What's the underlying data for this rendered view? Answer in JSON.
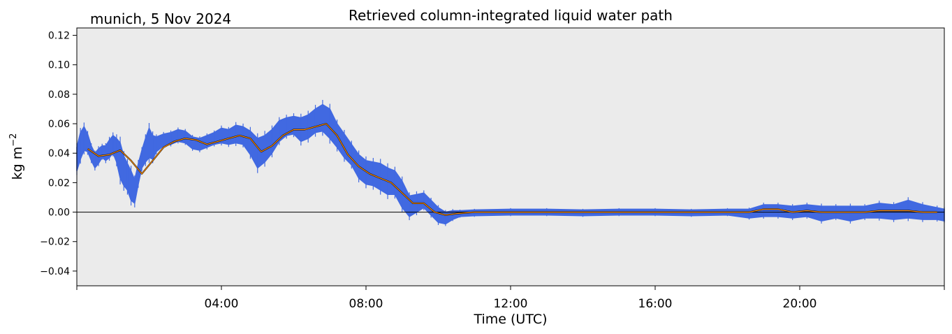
{
  "chart_data": {
    "type": "scatter",
    "title": "Retrieved column-integrated liquid water path",
    "subtitle": "munich, 5 Nov 2024",
    "xlabel": "Time (UTC)",
    "ylabel_base": "kg m",
    "ylabel_exp": "−2",
    "xlim_hours": [
      0,
      24
    ],
    "ylim": [
      -0.05,
      0.125
    ],
    "x_ticks": [
      {
        "hour": 0,
        "label": ""
      },
      {
        "hour": 4,
        "label": "04:00"
      },
      {
        "hour": 8,
        "label": "08:00"
      },
      {
        "hour": 12,
        "label": "12:00"
      },
      {
        "hour": 16,
        "label": "16:00"
      },
      {
        "hour": 20,
        "label": "20:00"
      },
      {
        "hour": 24,
        "label": ""
      }
    ],
    "y_ticks": [
      {
        "value": 0.12,
        "label": "0.12"
      },
      {
        "value": 0.1,
        "label": "0.10"
      },
      {
        "value": 0.08,
        "label": "0.08"
      },
      {
        "value": 0.06,
        "label": "0.06"
      },
      {
        "value": 0.04,
        "label": "0.04"
      },
      {
        "value": 0.02,
        "label": "0.02"
      },
      {
        "value": 0.0,
        "label": "0.00"
      },
      {
        "value": -0.02,
        "label": "−0.02"
      },
      {
        "value": -0.04,
        "label": "−0.04"
      }
    ],
    "zero_line": 0,
    "grid": false,
    "background": "#ebebeb",
    "series": [
      {
        "kind": "raw",
        "color": "#4169e1",
        "x_hours": [
          0.0,
          0.1,
          0.2,
          0.3,
          0.4,
          0.5,
          0.6,
          0.7,
          0.8,
          0.9,
          1.0,
          1.1,
          1.2,
          1.3,
          1.4,
          1.5,
          1.6,
          1.7,
          1.8,
          1.9,
          2.0,
          2.1,
          2.2,
          2.4,
          2.6,
          2.8,
          3.0,
          3.2,
          3.4,
          3.6,
          3.8,
          4.0,
          4.2,
          4.4,
          4.6,
          4.8,
          5.0,
          5.2,
          5.4,
          5.6,
          5.8,
          6.0,
          6.2,
          6.4,
          6.6,
          6.8,
          7.0,
          7.2,
          7.4,
          7.6,
          7.8,
          8.0,
          8.2,
          8.4,
          8.6,
          8.8,
          9.0,
          9.2,
          9.4,
          9.6,
          9.8,
          10.0,
          10.2,
          10.4,
          10.6,
          11.0,
          12.0,
          13.0,
          14.0,
          15.0,
          16.0,
          17.0,
          18.0,
          18.6,
          19.0,
          19.4,
          19.8,
          20.2,
          20.6,
          21.0,
          21.4,
          21.8,
          22.2,
          22.6,
          23.0,
          23.4,
          23.8,
          24.0
        ],
        "y": [
          0.036,
          0.045,
          0.05,
          0.047,
          0.04,
          0.035,
          0.038,
          0.041,
          0.04,
          0.043,
          0.046,
          0.042,
          0.035,
          0.028,
          0.024,
          0.018,
          0.014,
          0.026,
          0.036,
          0.042,
          0.047,
          0.044,
          0.046,
          0.049,
          0.05,
          0.052,
          0.051,
          0.047,
          0.046,
          0.048,
          0.05,
          0.052,
          0.051,
          0.053,
          0.052,
          0.047,
          0.04,
          0.043,
          0.048,
          0.055,
          0.058,
          0.059,
          0.056,
          0.058,
          0.062,
          0.064,
          0.06,
          0.052,
          0.045,
          0.039,
          0.031,
          0.027,
          0.026,
          0.024,
          0.021,
          0.02,
          0.012,
          0.004,
          0.006,
          0.008,
          0.003,
          -0.002,
          -0.004,
          -0.002,
          -0.001,
          -0.0005,
          0.0,
          0.0,
          -0.0005,
          0.0,
          0.0,
          -0.0005,
          0.0,
          -0.001,
          0.001,
          0.001,
          0.0,
          0.001,
          -0.001,
          0.0,
          -0.001,
          0.0,
          0.001,
          0.0,
          0.002,
          0.0,
          -0.001,
          -0.002
        ],
        "spread": [
          0.008,
          0.009,
          0.008,
          0.006,
          0.005,
          0.005,
          0.005,
          0.004,
          0.005,
          0.006,
          0.006,
          0.008,
          0.012,
          0.01,
          0.009,
          0.01,
          0.008,
          0.007,
          0.006,
          0.008,
          0.01,
          0.008,
          0.005,
          0.004,
          0.004,
          0.004,
          0.004,
          0.004,
          0.004,
          0.004,
          0.004,
          0.005,
          0.005,
          0.006,
          0.006,
          0.008,
          0.01,
          0.009,
          0.008,
          0.007,
          0.006,
          0.006,
          0.008,
          0.008,
          0.008,
          0.009,
          0.01,
          0.008,
          0.008,
          0.007,
          0.008,
          0.008,
          0.008,
          0.009,
          0.009,
          0.008,
          0.009,
          0.007,
          0.006,
          0.005,
          0.005,
          0.005,
          0.004,
          0.003,
          0.002,
          0.002,
          0.002,
          0.002,
          0.002,
          0.002,
          0.002,
          0.002,
          0.002,
          0.003,
          0.004,
          0.004,
          0.004,
          0.004,
          0.005,
          0.004,
          0.005,
          0.004,
          0.005,
          0.005,
          0.006,
          0.005,
          0.004,
          0.004
        ]
      },
      {
        "kind": "smoothed",
        "color": "#ff8c00",
        "outline_color": "#000000",
        "x_hours": [
          0.3,
          0.6,
          0.9,
          1.2,
          1.5,
          1.8,
          2.1,
          2.4,
          2.7,
          3.0,
          3.3,
          3.6,
          3.9,
          4.2,
          4.5,
          4.8,
          5.1,
          5.4,
          5.7,
          6.0,
          6.3,
          6.6,
          6.9,
          7.2,
          7.5,
          7.8,
          8.1,
          8.4,
          8.7,
          9.0,
          9.3,
          9.6,
          9.9,
          10.2,
          10.5,
          11.0,
          12.0,
          13.0,
          14.0,
          15.0,
          16.0,
          17.0,
          18.0,
          18.6,
          19.0,
          19.4,
          19.8,
          20.2,
          20.6,
          21.0,
          21.4,
          21.8,
          22.2,
          22.6,
          23.0,
          23.4,
          23.8
        ],
        "y": [
          0.043,
          0.038,
          0.039,
          0.042,
          0.035,
          0.026,
          0.035,
          0.044,
          0.048,
          0.05,
          0.049,
          0.046,
          0.048,
          0.05,
          0.052,
          0.05,
          0.041,
          0.045,
          0.052,
          0.056,
          0.056,
          0.058,
          0.06,
          0.052,
          0.039,
          0.031,
          0.026,
          0.023,
          0.02,
          0.013,
          0.006,
          0.006,
          0.0,
          -0.002,
          -0.001,
          0.0,
          0.0,
          0.0,
          0.0,
          0.0,
          0.0,
          0.0,
          0.0,
          0.0,
          0.002,
          0.002,
          0.0,
          0.001,
          0.0,
          0.0,
          0.0,
          0.0,
          0.001,
          0.001,
          0.001,
          0.0,
          0.0
        ]
      }
    ]
  }
}
